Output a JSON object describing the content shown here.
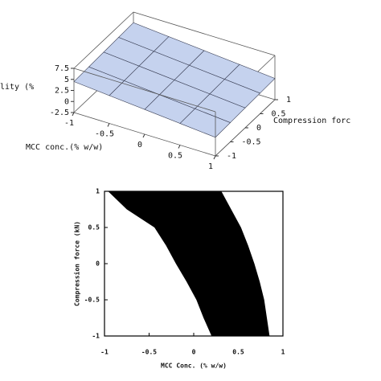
{
  "chart_data": [
    {
      "type": "surface3d",
      "zlabel": "lity (%",
      "xlabel": "MCC conc.(% w/w)",
      "ylabel": "Compression forc",
      "x": [
        -1,
        -0.5,
        0,
        0.5,
        1
      ],
      "y": [
        -1,
        -0.5,
        0,
        0.5,
        1
      ],
      "z": [
        [
          4.5,
          3.8,
          3.1,
          2.4,
          1.7
        ],
        [
          4.65,
          3.95,
          3.25,
          2.55,
          1.85
        ],
        [
          4.8,
          4.1,
          3.4,
          2.7,
          2.0
        ],
        [
          4.95,
          4.25,
          3.55,
          2.85,
          2.15
        ],
        [
          5.1,
          4.4,
          3.7,
          3.0,
          2.3
        ]
      ],
      "xlim": [
        -1,
        1
      ],
      "ylim": [
        -1,
        1
      ],
      "zlim": [
        -2.5,
        7.5
      ],
      "xticks": [
        -1,
        -0.5,
        0,
        0.5,
        1
      ],
      "yticks": [
        -1,
        -0.5,
        0,
        0.5,
        1
      ],
      "zticks": [
        -2.5,
        0,
        2.5,
        5,
        7.5
      ],
      "color": "#c5d2ee"
    },
    {
      "type": "region",
      "xlabel": "MCC Conc. (% w/w)",
      "ylabel": "Compression force (kN)",
      "y": [
        1,
        0.75,
        0.5,
        0.25,
        0,
        -0.25,
        -0.5,
        -0.75,
        -1
      ],
      "x_left": [
        -0.96,
        -0.75,
        -0.44,
        -0.31,
        -0.2,
        -0.08,
        0.03,
        0.11,
        0.2
      ],
      "x_right": [
        0.31,
        0.42,
        0.53,
        0.61,
        0.68,
        0.74,
        0.79,
        0.82,
        0.85
      ],
      "xlim": [
        -1,
        1
      ],
      "ylim": [
        -1,
        1
      ],
      "xticks": [
        -1,
        -0.5,
        0,
        0.5,
        1
      ],
      "yticks": [
        -1,
        -0.5,
        0,
        0.5,
        1
      ],
      "color": "#000000"
    }
  ]
}
